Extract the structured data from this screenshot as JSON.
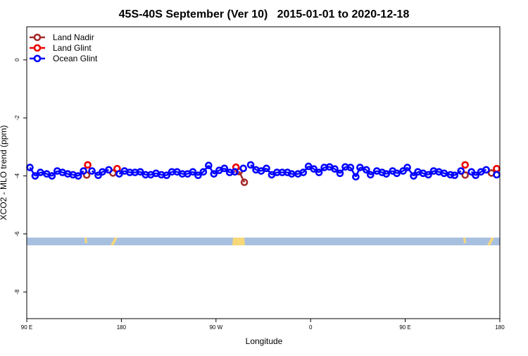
{
  "chart_data": {
    "type": "scatter",
    "title": "45S-40S September (Ver 10)   2015-01-01 to 2020-12-18",
    "x_label": "Longitude",
    "y_label": "XCO2 - MLO trend (ppm)",
    "xlim": [
      90,
      540
    ],
    "ylim": [
      -8.92,
      1.14
    ],
    "xticks": [
      {
        "value": 90,
        "label": "90 E"
      },
      {
        "value": 180,
        "label": "180"
      },
      {
        "value": 270,
        "label": "90 W"
      },
      {
        "value": 360,
        "label": "0"
      },
      {
        "value": 450,
        "label": "90 E"
      },
      {
        "value": 540,
        "label": "180"
      }
    ],
    "yticks": [
      0,
      -2,
      -4,
      -6,
      -8
    ],
    "legend": "top-left",
    "series": [
      {
        "name": "Land Nadir",
        "color": "#a52a2a",
        "x": [
          147,
          172,
          292,
          297,
          507,
          532
        ],
        "values": [
          -3.97,
          -3.9,
          -3.85,
          -4.22,
          -3.97,
          -3.9
        ]
      },
      {
        "name": "Land Glint",
        "color": "#ee0000",
        "x": [
          148,
          176,
          289,
          507,
          537
        ],
        "values": [
          -3.62,
          -3.75,
          -3.7,
          -3.62,
          -3.75
        ]
      },
      {
        "name": "Ocean Glint",
        "color": "#0000ff",
        "x": [
          93,
          98,
          103,
          109,
          114,
          119,
          124,
          129,
          134,
          139,
          144,
          152,
          158,
          162,
          168,
          178,
          183,
          188,
          193,
          198,
          203,
          208,
          213,
          218,
          223,
          228,
          233,
          238,
          243,
          248,
          253,
          258,
          263,
          268,
          273,
          278,
          283,
          288,
          296,
          303,
          308,
          313,
          318,
          323,
          328,
          333,
          338,
          342,
          348,
          353,
          358,
          363,
          368,
          373,
          378,
          383,
          388,
          393,
          398,
          403,
          407,
          413,
          417,
          423,
          428,
          432,
          438,
          442,
          448,
          452,
          458,
          462,
          467,
          472,
          477,
          482,
          487,
          493,
          497,
          503,
          513,
          517,
          522,
          527,
          537
        ],
        "values": [
          -3.71,
          -4.0,
          -3.88,
          -3.93,
          -4.0,
          -3.83,
          -3.88,
          -3.93,
          -3.96,
          -4.0,
          -3.83,
          -3.83,
          -3.98,
          -3.86,
          -3.79,
          -3.93,
          -3.83,
          -3.88,
          -3.88,
          -3.86,
          -3.96,
          -3.96,
          -3.91,
          -3.96,
          -3.98,
          -3.86,
          -3.86,
          -3.93,
          -3.93,
          -3.86,
          -3.98,
          -3.86,
          -3.64,
          -3.93,
          -3.81,
          -3.74,
          -3.88,
          -3.86,
          -3.74,
          -3.62,
          -3.79,
          -3.83,
          -3.74,
          -3.96,
          -3.88,
          -3.88,
          -3.88,
          -3.93,
          -3.93,
          -3.88,
          -3.67,
          -3.76,
          -3.88,
          -3.71,
          -3.69,
          -3.76,
          -3.91,
          -3.69,
          -3.71,
          -4.03,
          -3.71,
          -3.79,
          -3.96,
          -3.83,
          -3.88,
          -3.93,
          -3.83,
          -3.91,
          -3.83,
          -3.71,
          -4.0,
          -3.86,
          -3.91,
          -3.96,
          -3.83,
          -3.86,
          -3.91,
          -3.96,
          -3.98,
          -3.83,
          -3.86,
          -3.98,
          -3.86,
          -3.79,
          -3.96
        ]
      }
    ]
  }
}
